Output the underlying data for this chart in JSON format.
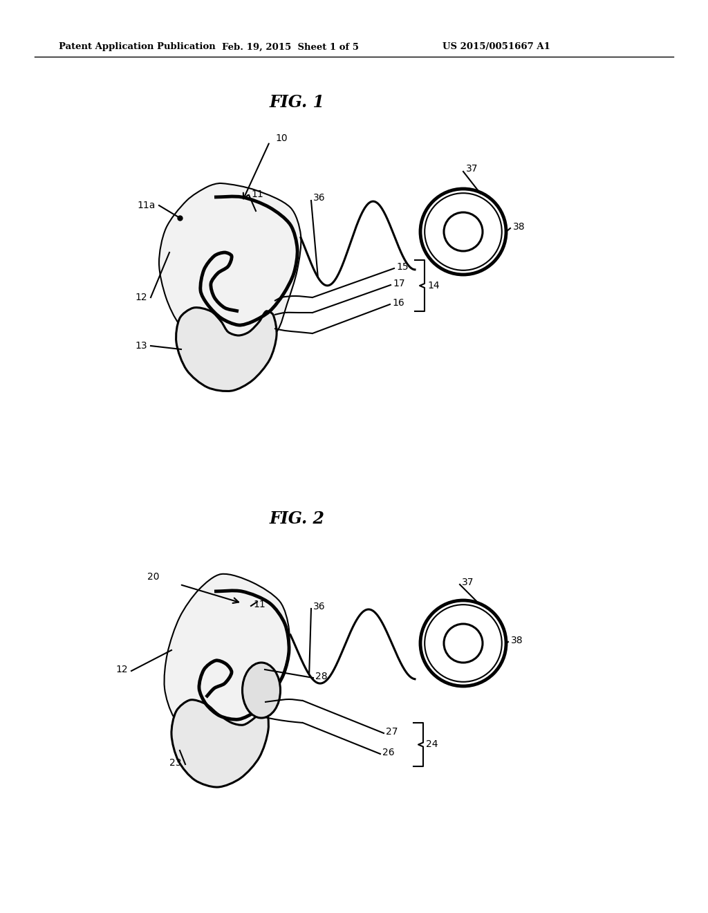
{
  "bg_color": "#ffffff",
  "line_color": "#000000",
  "fig_width": 10.24,
  "fig_height": 13.2,
  "header_text1": "Patent Application Publication",
  "header_text2": "Feb. 19, 2015  Sheet 1 of 5",
  "header_text3": "US 2015/0051667 A1",
  "fig1_title": "FIG. 1",
  "fig2_title": "FIG. 2"
}
